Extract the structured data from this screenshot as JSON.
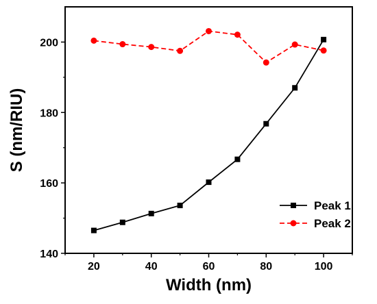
{
  "chart_data": {
    "type": "line",
    "xlabel": "Width (nm)",
    "ylabel": "S (nm/RIU)",
    "xlim": [
      10,
      110
    ],
    "ylim": [
      140,
      210
    ],
    "x_ticks": [
      20,
      40,
      60,
      80,
      100
    ],
    "y_ticks": [
      140,
      160,
      180,
      200
    ],
    "x": [
      20,
      30,
      40,
      50,
      60,
      70,
      80,
      90,
      100
    ],
    "series": [
      {
        "name": "Peak 1",
        "color": "#000000",
        "line_style": "solid",
        "marker": "square",
        "values": [
          146.5,
          148.8,
          151.3,
          153.6,
          160.2,
          166.7,
          176.8,
          187.0,
          200.7
        ]
      },
      {
        "name": "Peak 2",
        "color": "#ff0000",
        "line_style": "dashed",
        "marker": "circle",
        "values": [
          200.4,
          199.4,
          198.6,
          197.5,
          203.1,
          202.1,
          194.2,
          199.3,
          197.6
        ]
      }
    ],
    "legend_position": "bottom-right",
    "grid": false
  }
}
